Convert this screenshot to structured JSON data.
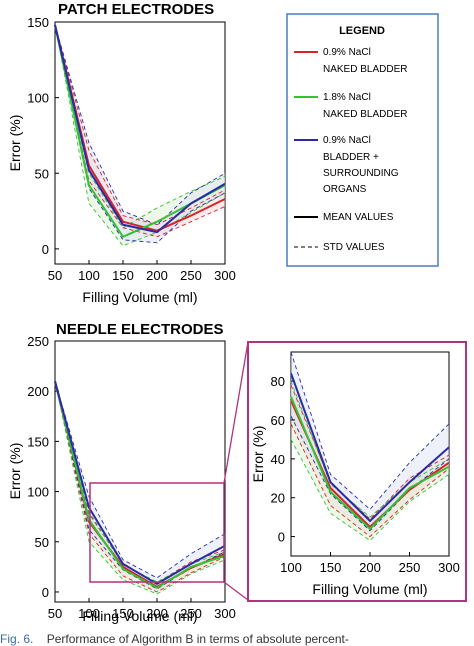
{
  "colors": {
    "red": "#d8232a",
    "green": "#33c233",
    "blue": "#2a2aa8",
    "legend_border": "#4a7fc1",
    "zoom_box": "#b0337c",
    "band_red": "#f3d0d0",
    "band_blue": "#dadff2",
    "band_green": "#d9f0cf"
  },
  "legend": {
    "title": "LEGEND",
    "entries": [
      {
        "label_lines": [
          "0.9% NaCl",
          "NAKED BLADDER"
        ],
        "color": "red"
      },
      {
        "label_lines": [
          "1.8% NaCl",
          "NAKED BLADDER"
        ],
        "color": "green"
      },
      {
        "label_lines": [
          "0.9% NaCl",
          "BLADDER +",
          "SURROUNDING",
          "ORGANS"
        ],
        "color": "blue"
      }
    ],
    "mean_label": "MEAN VALUES",
    "std_label": "STD VALUES"
  },
  "caption": {
    "fig_label": "Fig. 6.",
    "text": "Performance of Algorithm B in terms of absolute percent-"
  },
  "chart_data": [
    {
      "id": "patch",
      "type": "line",
      "title": "PATCH ELECTRODES",
      "xlabel": "Filling Volume (ml)",
      "ylabel": "Error (%)",
      "xlim": [
        50,
        300
      ],
      "ylim": [
        -10,
        150
      ],
      "xticks": [
        50,
        100,
        150,
        200,
        250,
        300
      ],
      "yticks": [
        0,
        50,
        100,
        150
      ],
      "x": [
        50,
        100,
        150,
        200,
        250,
        300
      ],
      "series": [
        {
          "name": "0.9% NaCl NAKED BLADDER",
          "color": "red",
          "mean": [
            148,
            55,
            18,
            12,
            22,
            33
          ],
          "std_upper": [
            148,
            65,
            22,
            16,
            27,
            39
          ],
          "std_lower": [
            148,
            45,
            14,
            8,
            18,
            28
          ]
        },
        {
          "name": "1.8% NaCl NAKED BLADDER",
          "color": "green",
          "mean": [
            148,
            42,
            8,
            18,
            30,
            42
          ],
          "std_upper": [
            148,
            50,
            14,
            27,
            38,
            48
          ],
          "std_lower": [
            148,
            30,
            2,
            11,
            24,
            37
          ]
        },
        {
          "name": "0.9% NaCl BLADDER + SURROUNDING ORGANS",
          "color": "blue",
          "mean": [
            148,
            52,
            16,
            11,
            30,
            43
          ],
          "std_upper": [
            148,
            70,
            25,
            16,
            37,
            50
          ],
          "std_lower": [
            148,
            40,
            6,
            4,
            25,
            37
          ]
        }
      ]
    },
    {
      "id": "needle",
      "type": "line",
      "title": "NEEDLE ELECTRODES",
      "xlabel": "Filling Volume (ml)",
      "ylabel": "Error (%)",
      "xlim": [
        50,
        300
      ],
      "ylim": [
        -10,
        250
      ],
      "xticks": [
        50,
        100,
        150,
        200,
        250,
        300
      ],
      "yticks": [
        0,
        50,
        100,
        150,
        200,
        250
      ],
      "x": [
        50,
        100,
        150,
        200,
        250,
        300
      ],
      "series": [
        {
          "name": "0.9% NaCl NAKED BLADDER",
          "color": "red",
          "mean": [
            210,
            70,
            25,
            5,
            24,
            38
          ],
          "std_upper": [
            210,
            78,
            28,
            9,
            30,
            42
          ],
          "std_lower": [
            210,
            58,
            16,
            0,
            19,
            35
          ]
        },
        {
          "name": "1.8% NaCl NAKED BLADDER",
          "color": "green",
          "mean": [
            210,
            72,
            23,
            4,
            25,
            36
          ],
          "std_upper": [
            210,
            80,
            27,
            10,
            28,
            40
          ],
          "std_lower": [
            210,
            50,
            12,
            -2,
            18,
            32
          ]
        },
        {
          "name": "0.9% NaCl BLADDER + SURROUNDING ORGANS",
          "color": "blue",
          "mean": [
            210,
            84,
            28,
            8,
            28,
            46
          ],
          "std_upper": [
            210,
            95,
            32,
            14,
            38,
            58
          ],
          "std_lower": [
            210,
            62,
            22,
            3,
            24,
            40
          ]
        }
      ]
    },
    {
      "id": "zoom",
      "type": "line",
      "title": "",
      "xlabel": "Filling Volume (ml)",
      "ylabel": "Error (%)",
      "xlim": [
        100,
        300
      ],
      "ylim": [
        -10,
        95
      ],
      "xticks": [
        100,
        150,
        200,
        250,
        300
      ],
      "yticks": [
        0,
        20,
        40,
        60,
        80
      ],
      "x": [
        100,
        150,
        200,
        250,
        300
      ],
      "series": [
        {
          "name": "0.9% NaCl NAKED BLADDER",
          "color": "red",
          "mean": [
            70,
            25,
            5,
            24,
            38
          ],
          "std_upper": [
            78,
            28,
            9,
            30,
            42
          ],
          "std_lower": [
            58,
            16,
            0,
            19,
            35
          ]
        },
        {
          "name": "1.8% NaCl NAKED BLADDER",
          "color": "green",
          "mean": [
            72,
            23,
            4,
            25,
            36
          ],
          "std_upper": [
            80,
            27,
            10,
            28,
            40
          ],
          "std_lower": [
            50,
            12,
            -2,
            18,
            32
          ]
        },
        {
          "name": "0.9% NaCl BLADDER + SURROUNDING ORGANS",
          "color": "blue",
          "mean": [
            84,
            28,
            8,
            28,
            46
          ],
          "std_upper": [
            95,
            32,
            14,
            38,
            58
          ],
          "std_lower": [
            62,
            22,
            3,
            24,
            40
          ]
        }
      ]
    }
  ]
}
